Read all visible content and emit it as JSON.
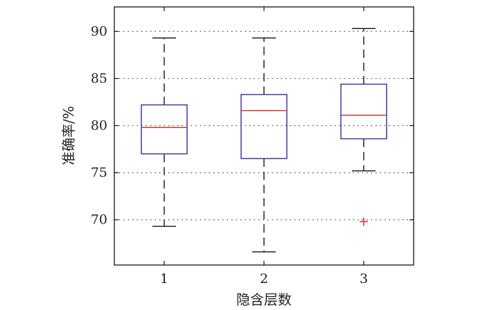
{
  "chart_data": {
    "type": "boxplot",
    "title": "",
    "xlabel": "隐含层数",
    "ylabel": "准确率/%",
    "ylim": [
      65.2,
      92.6
    ],
    "yticks": [
      70,
      75,
      80,
      85,
      90
    ],
    "grid": {
      "y": "dotted",
      "x": "off"
    },
    "categories": [
      "1",
      "2",
      "3"
    ],
    "boxes": [
      {
        "category": "1",
        "whisker_low": 69.3,
        "q1": 77.0,
        "median": 79.8,
        "q3": 82.2,
        "whisker_high": 89.3,
        "outliers": []
      },
      {
        "category": "2",
        "whisker_low": 66.6,
        "q1": 76.5,
        "median": 81.6,
        "q3": 83.3,
        "whisker_high": 89.3,
        "outliers": []
      },
      {
        "category": "3",
        "whisker_low": 75.2,
        "q1": 78.6,
        "median": 81.1,
        "q3": 84.4,
        "whisker_high": 90.3,
        "outliers": [
          69.8
        ]
      }
    ],
    "colors": {
      "box": "#3a3aa8",
      "median": "#d93030",
      "whisker": "#222222",
      "outlier": "#d93030",
      "grid": "#444444"
    }
  }
}
